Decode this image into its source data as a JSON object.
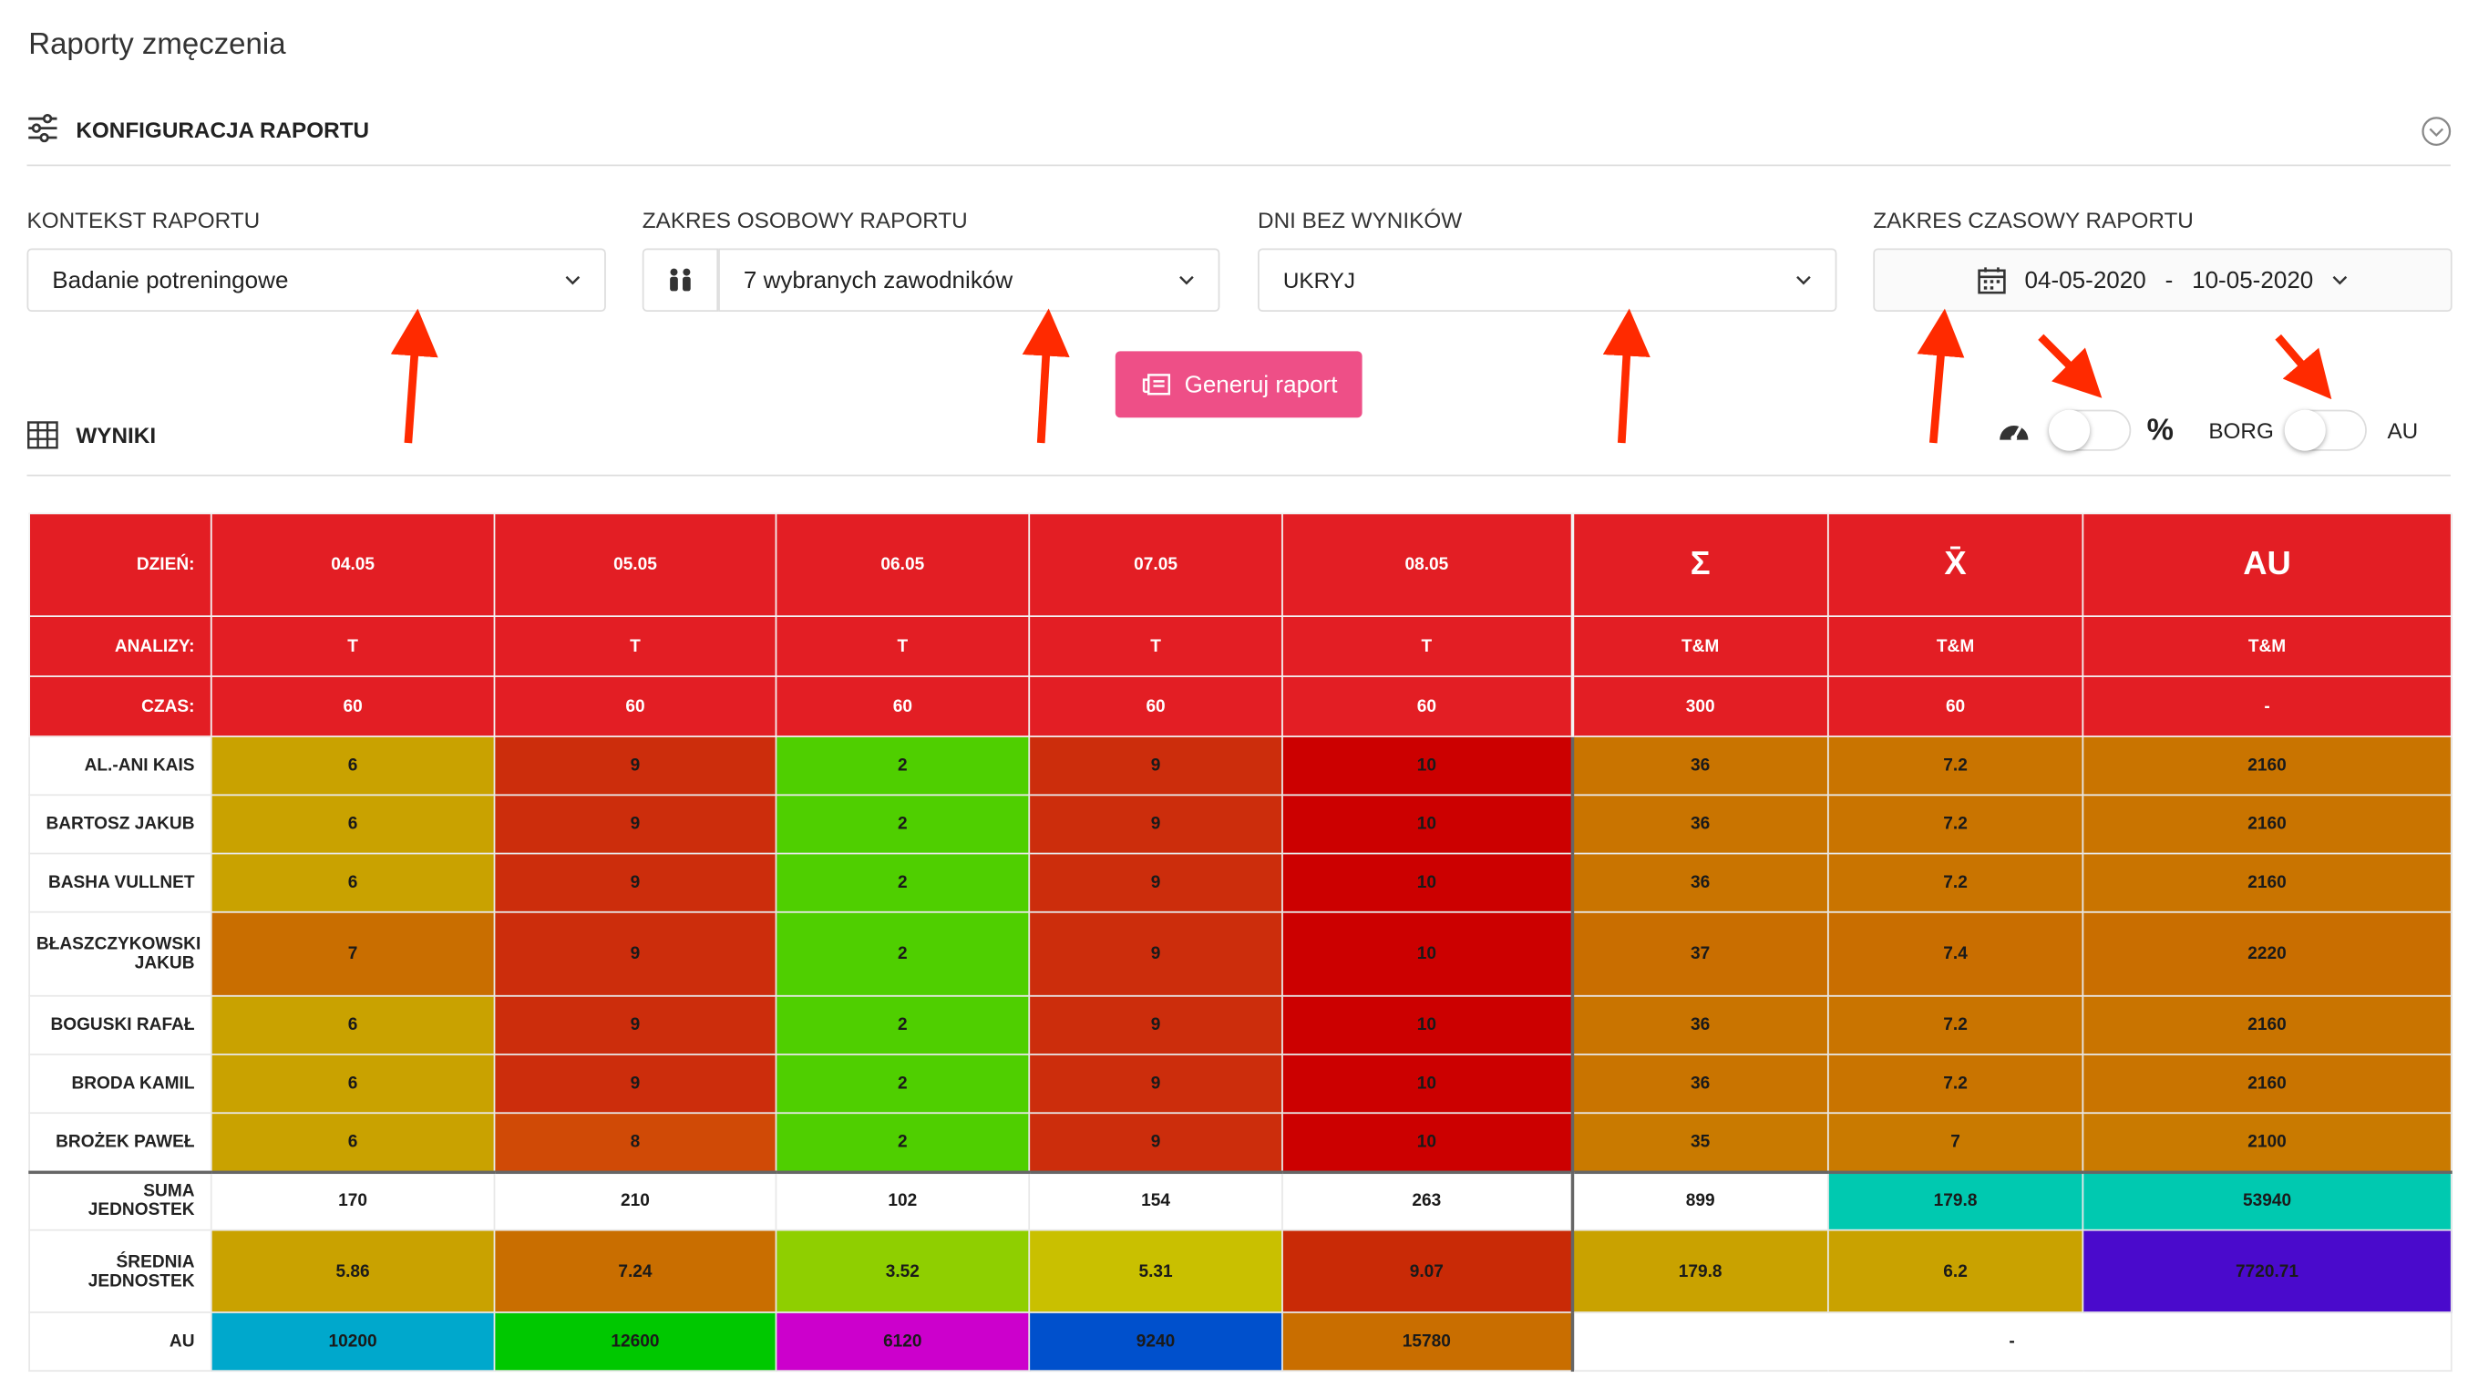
{
  "header": {
    "title": "Raporty zmęczenia",
    "config_title": "KONFIGURACJA RAPORTU"
  },
  "filters": [
    {
      "label": "KONTEKST RAPORTU",
      "value": "Badanie potreningowe"
    },
    {
      "label": "ZAKRES OSOBOWY RAPORTU",
      "value": "7 wybranych zawodników"
    },
    {
      "label": "DNI BEZ WYNIKÓW",
      "value": "UKRYJ"
    },
    {
      "label": "ZAKRES CZASOWY RAPORTU",
      "from": "04-05-2020",
      "separator": "-",
      "to": "10-05-2020"
    }
  ],
  "button": "Generuj raport",
  "results": {
    "title": "WYNIKI",
    "percent": "%",
    "borg": "BORG",
    "au": "AU"
  },
  "table": {
    "header_color": "#e31e24",
    "header_rows": [
      {
        "label": "DZIEŃ:",
        "cells": [
          "04.05",
          "05.05",
          "06.05",
          "07.05",
          "08.05",
          "Σ",
          "X̄",
          "AU"
        ]
      },
      {
        "label": "ANALIZY:",
        "cells": [
          "T",
          "T",
          "T",
          "T",
          "T",
          "T&M",
          "T&M",
          "T&M"
        ]
      },
      {
        "label": "CZAS:",
        "cells": [
          "60",
          "60",
          "60",
          "60",
          "60",
          "300",
          "60",
          "-"
        ]
      }
    ],
    "rows": [
      {
        "label": "AL.-ANI KAIS",
        "cells": [
          "6",
          "9",
          "2",
          "9",
          "10",
          "36",
          "7.2",
          "2160"
        ],
        "colors": [
          "#c9a200",
          "#cc2d0c",
          "#4fcf00",
          "#cc2d0c",
          "#cc0000",
          "#c97400",
          "#c97400",
          "#c97400"
        ]
      },
      {
        "label": "BARTOSZ JAKUB",
        "cells": [
          "6",
          "9",
          "2",
          "9",
          "10",
          "36",
          "7.2",
          "2160"
        ],
        "colors": [
          "#c9a200",
          "#cc2d0c",
          "#4fcf00",
          "#cc2d0c",
          "#cc0000",
          "#c97400",
          "#c97400",
          "#c97400"
        ]
      },
      {
        "label": "BASHA VULLNET",
        "cells": [
          "6",
          "9",
          "2",
          "9",
          "10",
          "36",
          "7.2",
          "2160"
        ],
        "colors": [
          "#c9a200",
          "#cc2d0c",
          "#4fcf00",
          "#cc2d0c",
          "#cc0000",
          "#c97400",
          "#c97400",
          "#c97400"
        ]
      },
      {
        "label": "BŁASZCZYKOWSKI JAKUB",
        "cells": [
          "7",
          "9",
          "2",
          "9",
          "10",
          "37",
          "7.4",
          "2220"
        ],
        "colors": [
          "#c96e00",
          "#cc2d0c",
          "#4fcf00",
          "#cc2d0c",
          "#cc0000",
          "#c96e00",
          "#c96e00",
          "#c96e00"
        ]
      },
      {
        "label": "BOGUSKI RAFAŁ",
        "cells": [
          "6",
          "9",
          "2",
          "9",
          "10",
          "36",
          "7.2",
          "2160"
        ],
        "colors": [
          "#c9a200",
          "#cc2d0c",
          "#4fcf00",
          "#cc2d0c",
          "#cc0000",
          "#c97400",
          "#c97400",
          "#c97400"
        ]
      },
      {
        "label": "BRODA KAMIL",
        "cells": [
          "6",
          "9",
          "2",
          "9",
          "10",
          "36",
          "7.2",
          "2160"
        ],
        "colors": [
          "#c9a200",
          "#cc2d0c",
          "#4fcf00",
          "#cc2d0c",
          "#cc0000",
          "#c97400",
          "#c97400",
          "#c97400"
        ]
      },
      {
        "label": "BROŻEK PAWEŁ",
        "cells": [
          "6",
          "8",
          "2",
          "9",
          "10",
          "35",
          "7",
          "2100"
        ],
        "colors": [
          "#c9a200",
          "#d04a06",
          "#4fcf00",
          "#cc2d0c",
          "#cc0000",
          "#c97a00",
          "#c97a00",
          "#c97a00"
        ]
      }
    ],
    "summary_rows": [
      {
        "label": "SUMA JEDNOSTEK",
        "cells": [
          "170",
          "210",
          "102",
          "154",
          "263",
          "899",
          "179.8",
          "53940"
        ],
        "colors": [
          "#ffffff",
          "#ffffff",
          "#ffffff",
          "#ffffff",
          "#ffffff",
          "#ffffff",
          "#00c9b0",
          "#00c9b0"
        ]
      },
      {
        "label": "ŚREDNIA JEDNOSTEK",
        "cells": [
          "5.86",
          "7.24",
          "3.52",
          "5.31",
          "9.07",
          "179.8",
          "6.2",
          "7720.71"
        ],
        "colors": [
          "#c9a200",
          "#c96e00",
          "#8fcf00",
          "#c9c000",
          "#c92a06",
          "#c9a200",
          "#c9a200",
          "#4a0acc"
        ]
      },
      {
        "label": "AU",
        "cells": [
          "10200",
          "12600",
          "6120",
          "9240",
          "15780",
          "-"
        ],
        "colors": [
          "#00a8cc",
          "#00c800",
          "#cc00cc",
          "#0050cc",
          "#c96e00",
          "#ffffff"
        ]
      }
    ]
  }
}
